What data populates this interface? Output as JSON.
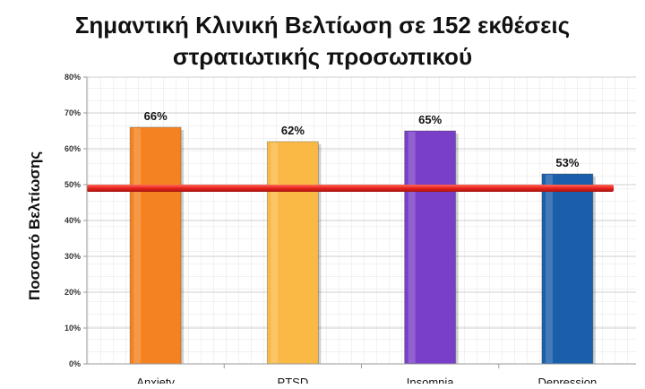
{
  "chart_data": {
    "type": "bar",
    "title_lines": [
      "Σημαντική Κλινική Βελτίωση σε 152 εκθέσεις",
      "στρατιωτικής προσωπικού"
    ],
    "xlabel": "",
    "ylabel": "Ποσοστό Βελτίωσης",
    "categories": [
      "Anxiety",
      "PTSD",
      "Insomnia",
      "Depression"
    ],
    "values": [
      66,
      62,
      65,
      53
    ],
    "data_labels": [
      "66%",
      "62%",
      "65%",
      "53%"
    ],
    "bar_colors": [
      "#f58220",
      "#f9b944",
      "#7a3fc8",
      "#1a5faa"
    ],
    "ylim": [
      0,
      80
    ],
    "yticks": [
      0,
      10,
      20,
      30,
      40,
      50,
      60,
      70,
      80
    ],
    "ytick_labels": [
      "0%",
      "10%",
      "20%",
      "30%",
      "40%",
      "50%",
      "60%",
      "70%",
      "80%"
    ],
    "reference_line": {
      "value": 49,
      "color": "#e8221b"
    },
    "grid": true,
    "legend": "none"
  }
}
